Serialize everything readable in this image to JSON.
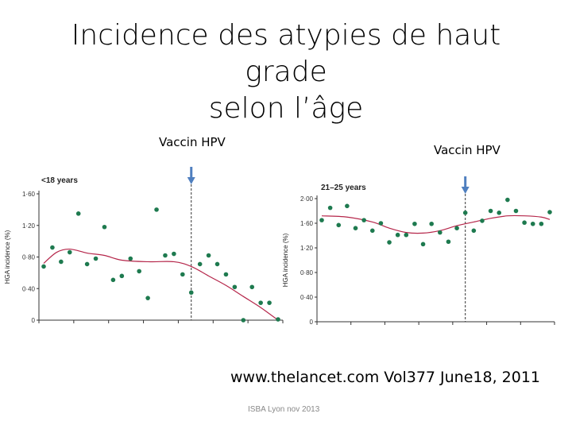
{
  "slide": {
    "title_line1": "Incidence des atypies de haut grade",
    "title_line2": "selon l’âge",
    "source": "www.thelancet.com Vol377 June18, 2011",
    "footer": "ISBA Lyon nov 2013"
  },
  "colors": {
    "point": "#1e7a4f",
    "curve": "#b5264a",
    "arrow": "#4f7fbf",
    "axis": "#333333"
  },
  "chart_data": [
    {
      "type": "scatter",
      "title": "<18 years",
      "ylabel": "HGA incidence (%)",
      "ylim": [
        0,
        1.6
      ],
      "yticks": [
        "0",
        "0·40",
        "0·80",
        "1·20",
        "1·60"
      ],
      "ytick_values": [
        0,
        0.4,
        0.8,
        1.2,
        1.6
      ],
      "xlim": [
        0,
        27
      ],
      "grid": false,
      "annotation": {
        "label": "Vaccin HPV",
        "x": 17
      },
      "points": [
        [
          0,
          0.68
        ],
        [
          1,
          0.92
        ],
        [
          2,
          0.74
        ],
        [
          3,
          0.86
        ],
        [
          4,
          1.35
        ],
        [
          5,
          0.71
        ],
        [
          6,
          0.78
        ],
        [
          7,
          1.18
        ],
        [
          8,
          0.51
        ],
        [
          9,
          0.56
        ],
        [
          10,
          0.78
        ],
        [
          11,
          0.62
        ],
        [
          12,
          0.28
        ],
        [
          13,
          1.4
        ],
        [
          14,
          0.82
        ],
        [
          15,
          0.84
        ],
        [
          16,
          0.58
        ],
        [
          17,
          0.35
        ],
        [
          18,
          0.71
        ],
        [
          19,
          0.82
        ],
        [
          20,
          0.71
        ],
        [
          21,
          0.58
        ],
        [
          22,
          0.42
        ],
        [
          23,
          0.0
        ],
        [
          24,
          0.42
        ],
        [
          25,
          0.22
        ],
        [
          26,
          0.22
        ],
        [
          27,
          0.01
        ]
      ],
      "trend": [
        [
          0,
          0.72
        ],
        [
          1.5,
          0.86
        ],
        [
          3,
          0.9
        ],
        [
          5,
          0.85
        ],
        [
          7,
          0.82
        ],
        [
          9,
          0.76
        ],
        [
          12,
          0.74
        ],
        [
          15,
          0.74
        ],
        [
          17,
          0.68
        ],
        [
          19,
          0.56
        ],
        [
          21,
          0.44
        ],
        [
          23,
          0.3
        ],
        [
          25,
          0.16
        ],
        [
          27,
          0.0
        ]
      ]
    },
    {
      "type": "scatter",
      "title": "21–25 years",
      "ylabel": "HGA incidence (%)",
      "ylim": [
        0,
        2.0
      ],
      "yticks": [
        "0",
        "0·40",
        "0·80",
        "1·20",
        "1·60",
        "2·00"
      ],
      "ytick_values": [
        0,
        0.4,
        0.8,
        1.2,
        1.6,
        2.0
      ],
      "xlim": [
        0,
        27
      ],
      "grid": false,
      "annotation": {
        "label": "Vaccin HPV",
        "x": 17
      },
      "points": [
        [
          0,
          1.65
        ],
        [
          1,
          1.85
        ],
        [
          2,
          1.57
        ],
        [
          3,
          1.88
        ],
        [
          4,
          1.52
        ],
        [
          5,
          1.65
        ],
        [
          6,
          1.48
        ],
        [
          7,
          1.6
        ],
        [
          8,
          1.29
        ],
        [
          9,
          1.41
        ],
        [
          10,
          1.41
        ],
        [
          11,
          1.59
        ],
        [
          12,
          1.26
        ],
        [
          13,
          1.59
        ],
        [
          14,
          1.45
        ],
        [
          15,
          1.3
        ],
        [
          16,
          1.52
        ],
        [
          17,
          1.77
        ],
        [
          18,
          1.48
        ],
        [
          19,
          1.64
        ],
        [
          20,
          1.8
        ],
        [
          21,
          1.77
        ],
        [
          22,
          1.98
        ],
        [
          23,
          1.8
        ],
        [
          24,
          1.61
        ],
        [
          25,
          1.59
        ],
        [
          26,
          1.59
        ],
        [
          27,
          1.78
        ]
      ],
      "trend": [
        [
          0,
          1.72
        ],
        [
          3,
          1.7
        ],
        [
          6,
          1.62
        ],
        [
          8,
          1.52
        ],
        [
          10,
          1.45
        ],
        [
          12,
          1.44
        ],
        [
          14,
          1.48
        ],
        [
          16,
          1.56
        ],
        [
          18,
          1.62
        ],
        [
          20,
          1.68
        ],
        [
          22,
          1.72
        ],
        [
          24,
          1.72
        ],
        [
          26,
          1.7
        ],
        [
          27,
          1.66
        ]
      ]
    }
  ]
}
